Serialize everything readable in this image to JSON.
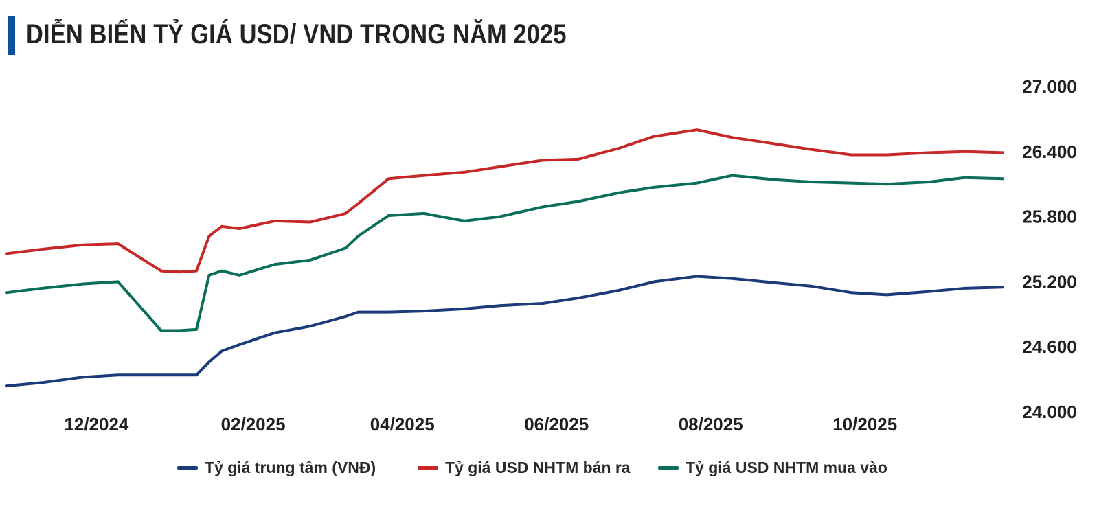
{
  "title": "DIỄN BIẾN TỶ GIÁ USD/ VND TRONG NĂM 2025",
  "chart_data": {
    "type": "line",
    "title": "DIỄN BIẾN TỶ GIÁ USD/ VND TRONG NĂM 2025",
    "xlabel": "",
    "ylabel": "",
    "x_ticks": [
      "12/2024",
      "02/2025",
      "04/2025",
      "06/2025",
      "08/2025",
      "10/2025"
    ],
    "x_range": [
      "2024-11",
      "2025-11"
    ],
    "y_ticks": [
      "24.000",
      "24.600",
      "25.200",
      "25.800",
      "26.400",
      "27.000"
    ],
    "ylim": [
      24000,
      27000
    ],
    "y_axis_side": "right",
    "grid": false,
    "legend_position": "bottom",
    "x": [
      "2024-11-01",
      "2024-11-15",
      "2024-12-01",
      "2024-12-15",
      "2025-01-01",
      "2025-01-08",
      "2025-01-15",
      "2025-01-20",
      "2025-01-25",
      "2025-02-01",
      "2025-02-15",
      "2025-03-01",
      "2025-03-15",
      "2025-03-20",
      "2025-04-01",
      "2025-04-15",
      "2025-05-01",
      "2025-05-15",
      "2025-06-01",
      "2025-06-15",
      "2025-07-01",
      "2025-07-15",
      "2025-08-01",
      "2025-08-15",
      "2025-09-01",
      "2025-09-15",
      "2025-10-01",
      "2025-10-15",
      "2025-11-01",
      "2025-11-15",
      "2025-11-30"
    ],
    "series": [
      {
        "name": "Tỷ giá trung tâm (VNĐ)",
        "color": "#1b3a7a",
        "values": [
          24240,
          24270,
          24320,
          24340,
          24340,
          24340,
          24340,
          24460,
          24560,
          24620,
          24730,
          24790,
          24880,
          24920,
          24920,
          24930,
          24950,
          24980,
          25000,
          25050,
          25120,
          25200,
          25250,
          25230,
          25190,
          25160,
          25100,
          25080,
          25110,
          25140,
          25150
        ]
      },
      {
        "name": "Tỷ giá USD NHTM bán ra",
        "color": "#c62828",
        "values": [
          25460,
          25500,
          25540,
          25550,
          25300,
          25290,
          25300,
          25620,
          25710,
          25690,
          25760,
          25750,
          25830,
          25920,
          26150,
          26180,
          26210,
          26260,
          26320,
          26330,
          26430,
          26540,
          26600,
          26530,
          26470,
          26420,
          26370,
          26370,
          26390,
          26400,
          26390
        ]
      },
      {
        "name": "Tỷ giá USD NHTM mua vào",
        "color": "#0b6e5a",
        "values": [
          25100,
          25140,
          25180,
          25200,
          24750,
          24750,
          24760,
          25260,
          25300,
          25260,
          25360,
          25400,
          25510,
          25620,
          25810,
          25830,
          25760,
          25800,
          25890,
          25940,
          26020,
          26070,
          26110,
          26180,
          26140,
          26120,
          26110,
          26100,
          26120,
          26160,
          26150
        ]
      }
    ]
  }
}
